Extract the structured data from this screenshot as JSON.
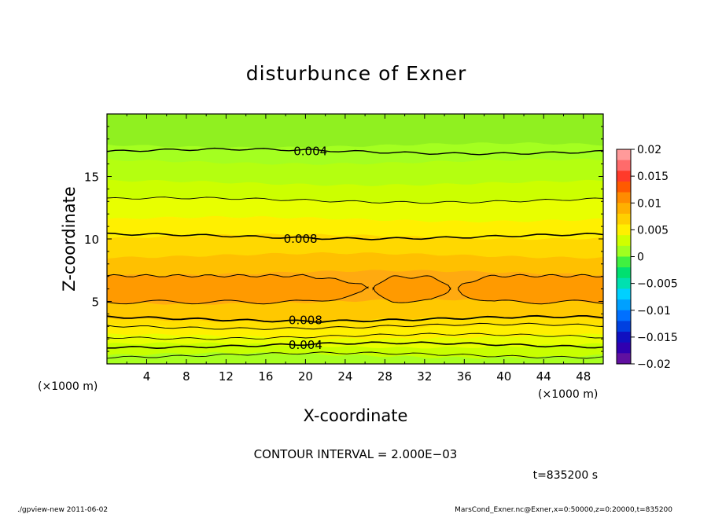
{
  "chart_data": {
    "type": "heatmap",
    "title": "disturbunce of Exner",
    "xlabel": "X-coordinate",
    "ylabel": "Z-coordinate",
    "x_unit_left": "(×1000 m)",
    "x_unit_right": "(×1000 m)",
    "xlim": [
      0,
      50
    ],
    "ylim": [
      0,
      20
    ],
    "x_ticks": [
      "4",
      "8",
      "12",
      "16",
      "20",
      "24",
      "28",
      "32",
      "36",
      "40",
      "44",
      "48"
    ],
    "x_tick_values": [
      4,
      8,
      12,
      16,
      20,
      24,
      28,
      32,
      36,
      40,
      44,
      48
    ],
    "y_ticks": [
      "5",
      "10",
      "15"
    ],
    "y_tick_values": [
      5,
      10,
      15
    ],
    "colorbar": {
      "ticks": [
        "0.02",
        "0.015",
        "0.01",
        "0.005",
        "0",
        "−0.005",
        "−0.01",
        "−0.015",
        "−0.02"
      ],
      "tick_values": [
        0.02,
        0.015,
        0.01,
        0.005,
        0,
        -0.005,
        -0.01,
        -0.015,
        -0.02
      ],
      "colors": [
        "#ff9a9a",
        "#ff6b6b",
        "#ff3a2a",
        "#ff5a00",
        "#ff8c00",
        "#ffb000",
        "#ffd000",
        "#fff000",
        "#d0ff00",
        "#a0ff20",
        "#40f040",
        "#00e070",
        "#00e0b0",
        "#00d0ff",
        "#00a0ff",
        "#0070ff",
        "#0040e0",
        "#1010c0",
        "#3000b0",
        "#6010a0"
      ]
    },
    "contour_labels": [
      {
        "text": "0.004",
        "x": 20.5,
        "z": 17.0
      },
      {
        "text": "0.008",
        "x": 19.5,
        "z": 10.0
      },
      {
        "text": "0.008",
        "x": 20.0,
        "z": 3.5
      },
      {
        "text": "0.004",
        "x": 20.0,
        "z": 1.5
      }
    ],
    "bands": [
      {
        "z0": 0,
        "z1": 0.7,
        "color": "#a8ff20"
      },
      {
        "z0": 0.7,
        "z1": 1.5,
        "color": "#c8ff00"
      },
      {
        "z0": 1.5,
        "z1": 2.2,
        "color": "#e8ff00"
      },
      {
        "z0": 2.2,
        "z1": 3.0,
        "color": "#fff000"
      },
      {
        "z0": 3.0,
        "z1": 3.6,
        "color": "#ffe000"
      },
      {
        "z0": 3.6,
        "z1": 5.0,
        "color": "#ffc800"
      },
      {
        "z0": 5.0,
        "z1": 7.3,
        "color": "#ffaa10"
      },
      {
        "z0": 7.3,
        "z1": 8.7,
        "color": "#ffc000"
      },
      {
        "z0": 8.7,
        "z1": 10.2,
        "color": "#ffd800"
      },
      {
        "z0": 10.2,
        "z1": 11.6,
        "color": "#fff000"
      },
      {
        "z0": 11.6,
        "z1": 13.1,
        "color": "#e8ff00"
      },
      {
        "z0": 13.1,
        "z1": 14.5,
        "color": "#ccff00"
      },
      {
        "z0": 14.5,
        "z1": 16.2,
        "color": "#b4ff10"
      },
      {
        "z0": 16.2,
        "z1": 17.5,
        "color": "#a4ff20"
      },
      {
        "z0": 17.5,
        "z1": 20.0,
        "color": "#90f020"
      }
    ],
    "contour_interval_text": "CONTOUR INTERVAL = 2.000E−03",
    "time_text": "t=835200 s"
  },
  "footer": {
    "left": "./gpview-new  2011-06-02",
    "right": "MarsCond_Exner.nc@Exner,x=0:50000,z=0:20000,t=835200"
  }
}
